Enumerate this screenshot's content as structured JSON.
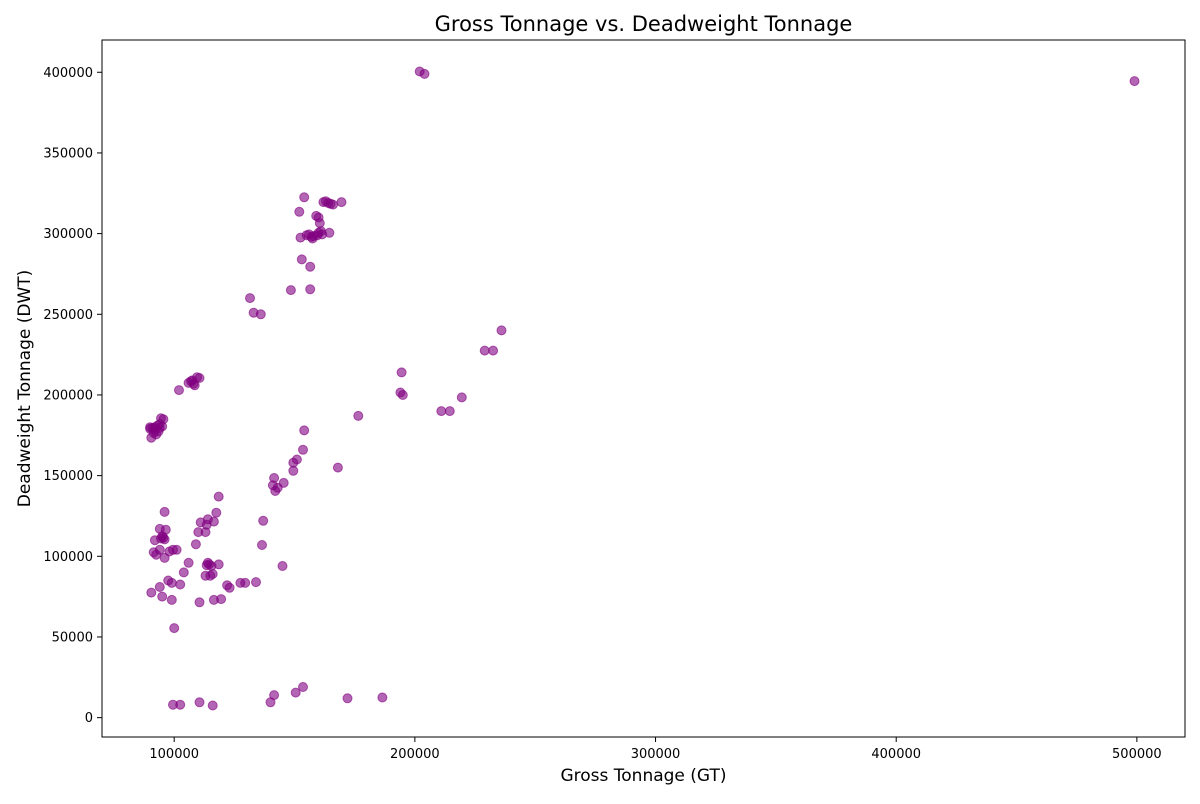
{
  "chart_data": {
    "type": "scatter",
    "title": "Gross Tonnage vs. Deadweight Tonnage",
    "xlabel": "Gross Tonnage (GT)",
    "ylabel": "Deadweight Tonnage (DWT)",
    "xlim": [
      70000,
      520000
    ],
    "ylim": [
      -12000,
      420000
    ],
    "x_ticks": [
      100000,
      200000,
      300000,
      400000,
      500000
    ],
    "x_tick_labels": [
      "100000",
      "200000",
      "300000",
      "400000",
      "500000"
    ],
    "y_ticks": [
      0,
      50000,
      100000,
      150000,
      200000,
      250000,
      300000,
      350000,
      400000
    ],
    "y_tick_labels": [
      "0",
      "50000",
      "100000",
      "150000",
      "200000",
      "250000",
      "300000",
      "350000",
      "400000"
    ],
    "grid": false,
    "legend": "none",
    "marker_color": "#800080",
    "marker_alpha": 0.6,
    "points": [
      [
        202000,
        400500
      ],
      [
        204000,
        399000
      ],
      [
        499000,
        394500
      ],
      [
        154000,
        322500
      ],
      [
        169500,
        319500
      ],
      [
        162000,
        319500
      ],
      [
        163000,
        320000
      ],
      [
        164000,
        319000
      ],
      [
        165000,
        318500
      ],
      [
        166000,
        318000
      ],
      [
        152000,
        313500
      ],
      [
        159000,
        311000
      ],
      [
        160000,
        310000
      ],
      [
        160500,
        306500
      ],
      [
        161000,
        301500
      ],
      [
        152500,
        297500
      ],
      [
        155000,
        299000
      ],
      [
        156000,
        299500
      ],
      [
        157000,
        298000
      ],
      [
        157500,
        297000
      ],
      [
        158000,
        298500
      ],
      [
        159500,
        299000
      ],
      [
        160000,
        300500
      ],
      [
        161500,
        299500
      ],
      [
        164500,
        300500
      ],
      [
        153000,
        284000
      ],
      [
        156500,
        279500
      ],
      [
        148500,
        265000
      ],
      [
        156500,
        265500
      ],
      [
        131500,
        260000
      ],
      [
        133000,
        251000
      ],
      [
        136000,
        250000
      ],
      [
        236000,
        240000
      ],
      [
        229000,
        227500
      ],
      [
        232500,
        227500
      ],
      [
        194500,
        214000
      ],
      [
        194000,
        201500
      ],
      [
        195000,
        200000
      ],
      [
        219500,
        198500
      ],
      [
        211000,
        190000
      ],
      [
        214500,
        190000
      ],
      [
        176500,
        187000
      ],
      [
        109500,
        211000
      ],
      [
        110500,
        210500
      ],
      [
        106000,
        207500
      ],
      [
        107000,
        208500
      ],
      [
        108000,
        207000
      ],
      [
        108500,
        206000
      ],
      [
        107500,
        209000
      ],
      [
        102000,
        203000
      ],
      [
        90000,
        180000
      ],
      [
        91000,
        179500
      ],
      [
        92000,
        178500
      ],
      [
        93000,
        181000
      ],
      [
        94000,
        182000
      ],
      [
        95000,
        180500
      ],
      [
        91500,
        176500
      ],
      [
        92500,
        175500
      ],
      [
        93500,
        177500
      ],
      [
        94500,
        185500
      ],
      [
        95500,
        185000
      ],
      [
        90500,
        173500
      ],
      [
        90000,
        179000
      ],
      [
        92000,
        180000
      ],
      [
        94000,
        179500
      ],
      [
        154000,
        178000
      ],
      [
        168000,
        155000
      ],
      [
        153500,
        166000
      ],
      [
        151000,
        160000
      ],
      [
        149500,
        158000
      ],
      [
        149500,
        153000
      ],
      [
        141500,
        148500
      ],
      [
        145500,
        145500
      ],
      [
        141000,
        144000
      ],
      [
        143000,
        142500
      ],
      [
        142000,
        140500
      ],
      [
        118500,
        137000
      ],
      [
        96000,
        127500
      ],
      [
        117500,
        127000
      ],
      [
        114000,
        123000
      ],
      [
        116500,
        121500
      ],
      [
        111000,
        121000
      ],
      [
        137000,
        122000
      ],
      [
        94000,
        117000
      ],
      [
        96500,
        116500
      ],
      [
        110000,
        115000
      ],
      [
        113000,
        115000
      ],
      [
        113500,
        119500
      ],
      [
        95000,
        112500
      ],
      [
        95500,
        111500
      ],
      [
        94500,
        111000
      ],
      [
        96000,
        110500
      ],
      [
        92000,
        110000
      ],
      [
        109000,
        107500
      ],
      [
        136500,
        107000
      ],
      [
        91500,
        102500
      ],
      [
        92500,
        101000
      ],
      [
        94000,
        104000
      ],
      [
        98000,
        103000
      ],
      [
        99500,
        104000
      ],
      [
        101000,
        104000
      ],
      [
        96000,
        99000
      ],
      [
        106000,
        96000
      ],
      [
        114000,
        96000
      ],
      [
        114500,
        95000
      ],
      [
        113500,
        94500
      ],
      [
        115500,
        94000
      ],
      [
        118500,
        95000
      ],
      [
        145000,
        94000
      ],
      [
        104000,
        90000
      ],
      [
        113000,
        88000
      ],
      [
        115000,
        88000
      ],
      [
        116000,
        89000
      ],
      [
        97500,
        85000
      ],
      [
        99000,
        83500
      ],
      [
        102500,
        82500
      ],
      [
        94000,
        81000
      ],
      [
        122000,
        82000
      ],
      [
        123000,
        80500
      ],
      [
        127500,
        83500
      ],
      [
        129500,
        83500
      ],
      [
        134000,
        84000
      ],
      [
        90500,
        77500
      ],
      [
        95000,
        75000
      ],
      [
        99000,
        73000
      ],
      [
        110500,
        71500
      ],
      [
        116500,
        73000
      ],
      [
        119500,
        73500
      ],
      [
        100000,
        55500
      ],
      [
        153500,
        19000
      ],
      [
        150500,
        15500
      ],
      [
        141500,
        14000
      ],
      [
        172000,
        12000
      ],
      [
        186500,
        12500
      ],
      [
        110500,
        9500
      ],
      [
        140000,
        9500
      ],
      [
        99500,
        8000
      ],
      [
        102500,
        8000
      ],
      [
        116000,
        7500
      ]
    ]
  }
}
